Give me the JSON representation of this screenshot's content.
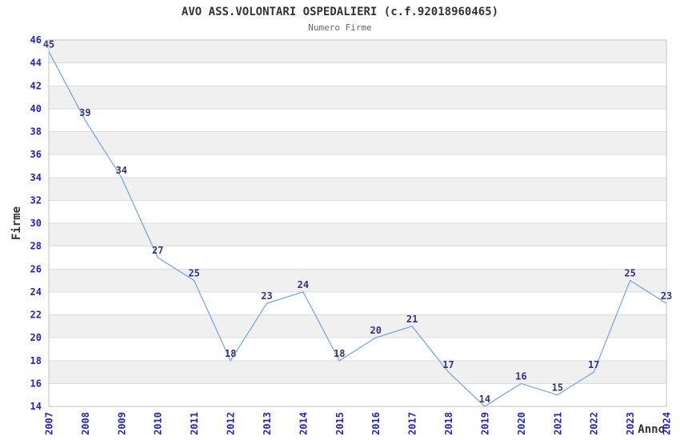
{
  "header": {
    "title": "AVO ASS.VOLONTARI OSPEDALIERI (c.f.92018960465)",
    "subtitle": "Numero Firme"
  },
  "chart_data": {
    "type": "line",
    "title": "AVO ASS.VOLONTARI OSPEDALIERI (c.f.92018960465)",
    "subtitle": "Numero Firme",
    "xlabel": "Anno",
    "ylabel": "Firme",
    "x": [
      "2007",
      "2008",
      "2009",
      "2010",
      "2011",
      "2012",
      "2013",
      "2014",
      "2015",
      "2016",
      "2017",
      "2018",
      "2019",
      "2020",
      "2021",
      "2022",
      "2023",
      "2024"
    ],
    "values": [
      45,
      39,
      34,
      27,
      25,
      18,
      23,
      24,
      18,
      20,
      21,
      17,
      14,
      16,
      15,
      17,
      25,
      23
    ],
    "ylim": [
      14,
      46
    ],
    "ytick_step": 2,
    "grid": true,
    "alternating_bands": true,
    "legend": "none",
    "data_labels_visible": true,
    "colors": {
      "line": "#79a9e2",
      "tick_label": "#2222cc",
      "data_label": "#333380",
      "band": "#f0f0f0",
      "band_alt": "#ffffff",
      "gridline": "#dcdcdc",
      "border": "#c3c3c3",
      "title": "#333333",
      "subtitle": "#666666",
      "axis_label": "#333333",
      "background": "#ffffff"
    }
  }
}
